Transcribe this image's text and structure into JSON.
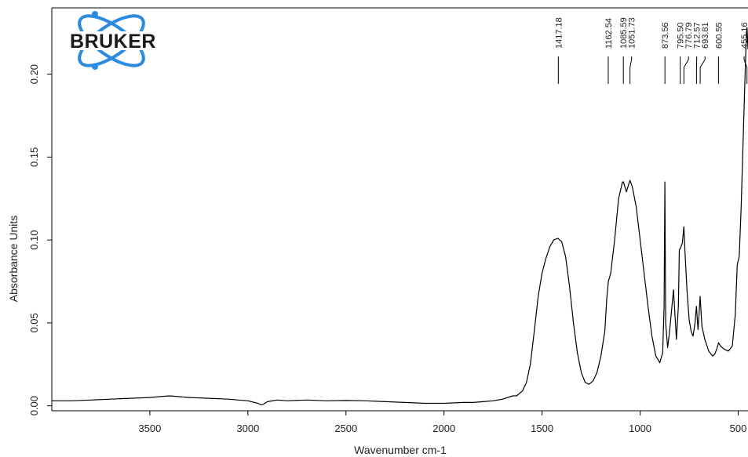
{
  "logo": {
    "text": "BRUKER",
    "orbit_color": "#2a8be0"
  },
  "chart_data": {
    "type": "line",
    "title": "",
    "xlabel": "Wavenumber cm-1",
    "ylabel": "Absorbance Units",
    "xlim": [
      4000,
      450
    ],
    "ylim": [
      -0.003,
      0.24
    ],
    "x_ticks": [
      3500,
      3000,
      2500,
      2000,
      1500,
      1000,
      500
    ],
    "x_tick_labels": [
      "3500",
      "3000",
      "2500",
      "2000",
      "1500",
      "1000",
      "500"
    ],
    "y_ticks": [
      0.0,
      0.05,
      0.1,
      0.15,
      0.2
    ],
    "y_tick_labels": [
      "0.00",
      "0.05",
      "0.10",
      "0.15",
      "0.20"
    ],
    "grid": false,
    "line_color": "#000000",
    "peak_labels": [
      "1417.18",
      "1162.54",
      "1085.59",
      "1051.73",
      "873.56",
      "795.50",
      "776.79",
      "712.57",
      "693.81",
      "600.55",
      "455.16"
    ],
    "peak_positions": [
      1417.18,
      1162.54,
      1085.59,
      1051.73,
      873.56,
      795.5,
      776.79,
      712.57,
      693.81,
      600.55,
      455.16
    ],
    "series": [
      {
        "x": [
          4000,
          3900,
          3800,
          3700,
          3600,
          3500,
          3450,
          3400,
          3350,
          3300,
          3200,
          3100,
          3000,
          2950,
          2930,
          2920,
          2900,
          2850,
          2800,
          2700,
          2600,
          2500,
          2400,
          2300,
          2200,
          2100,
          2000,
          1900,
          1850,
          1800,
          1750,
          1700,
          1650,
          1630,
          1600,
          1580,
          1560,
          1540,
          1520,
          1500,
          1480,
          1460,
          1440,
          1420,
          1400,
          1380,
          1360,
          1340,
          1320,
          1300,
          1280,
          1260,
          1240,
          1220,
          1200,
          1180,
          1170,
          1162,
          1150,
          1130,
          1110,
          1090,
          1085,
          1070,
          1060,
          1052,
          1040,
          1020,
          1000,
          980,
          960,
          940,
          920,
          900,
          885,
          878,
          874,
          870,
          860,
          850,
          830,
          815,
          805,
          800,
          795,
          785,
          777,
          770,
          760,
          750,
          740,
          730,
          720,
          713,
          705,
          700,
          694,
          685,
          670,
          650,
          630,
          620,
          610,
          600,
          590,
          570,
          550,
          530,
          515,
          505,
          495,
          485,
          475,
          465,
          458,
          455,
          450
        ],
        "y": [
          0.003,
          0.003,
          0.0035,
          0.004,
          0.0045,
          0.005,
          0.0055,
          0.006,
          0.0055,
          0.005,
          0.0045,
          0.004,
          0.003,
          0.0015,
          0.0005,
          0.001,
          0.0025,
          0.0035,
          0.003,
          0.0035,
          0.003,
          0.0032,
          0.003,
          0.0025,
          0.002,
          0.0015,
          0.0015,
          0.002,
          0.002,
          0.0025,
          0.003,
          0.004,
          0.006,
          0.006,
          0.009,
          0.014,
          0.025,
          0.045,
          0.066,
          0.08,
          0.089,
          0.096,
          0.1,
          0.101,
          0.099,
          0.09,
          0.072,
          0.05,
          0.032,
          0.02,
          0.014,
          0.013,
          0.015,
          0.02,
          0.03,
          0.045,
          0.065,
          0.075,
          0.08,
          0.1,
          0.125,
          0.135,
          0.135,
          0.129,
          0.133,
          0.136,
          0.132,
          0.12,
          0.1,
          0.08,
          0.06,
          0.042,
          0.03,
          0.026,
          0.032,
          0.06,
          0.135,
          0.05,
          0.035,
          0.045,
          0.07,
          0.04,
          0.06,
          0.094,
          0.095,
          0.098,
          0.108,
          0.09,
          0.068,
          0.052,
          0.045,
          0.042,
          0.05,
          0.06,
          0.046,
          0.054,
          0.066,
          0.048,
          0.04,
          0.033,
          0.03,
          0.031,
          0.034,
          0.038,
          0.036,
          0.034,
          0.033,
          0.036,
          0.055,
          0.085,
          0.09,
          0.12,
          0.16,
          0.2,
          0.225,
          0.228,
          0.215
        ]
      }
    ]
  }
}
